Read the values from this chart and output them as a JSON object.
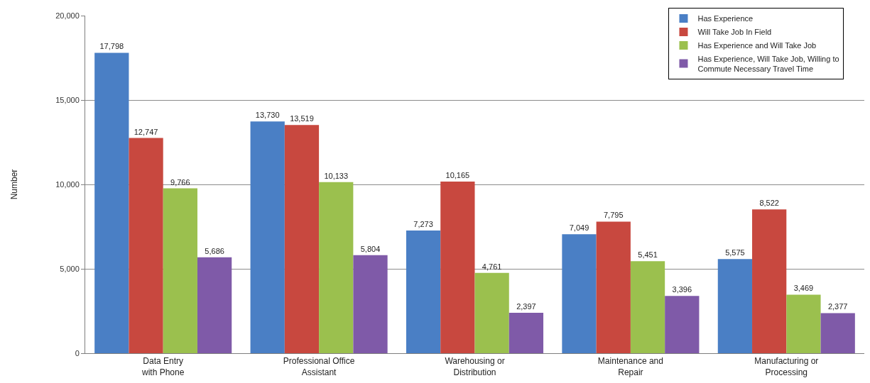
{
  "chart_data": {
    "type": "bar",
    "ylabel": "Number",
    "categories": [
      "Data Entry\nwith Phone",
      "Professional Office\nAssistant",
      "Warehousing or\nDistribution",
      "Maintenance and\nRepair",
      "Manufacturing or\nProcessing"
    ],
    "series": [
      {
        "name": "Has Experience",
        "color": "#4a7fc5",
        "values": [
          17798,
          13730,
          7273,
          7049,
          5575
        ],
        "value_labels": [
          "17,798",
          "13,730",
          "7,273",
          "7,049",
          "5,575"
        ]
      },
      {
        "name": "Will Take Job In Field",
        "color": "#c8483f",
        "values": [
          12747,
          13519,
          10165,
          7795,
          8522
        ],
        "value_labels": [
          "12,747",
          "13,519",
          "10,165",
          "7,795",
          "8,522"
        ]
      },
      {
        "name": "Has Experience and Will Take Job",
        "color": "#9bc04e",
        "values": [
          9766,
          10133,
          4761,
          5451,
          3469
        ],
        "value_labels": [
          "9,766",
          "10,133",
          "4,761",
          "5,451",
          "3,469"
        ]
      },
      {
        "name": "Has Experience, Will Take Job, Willing to\nCommute Necessary Travel Time",
        "color": "#7f5aa8",
        "values": [
          5686,
          5804,
          2397,
          3396,
          2377
        ],
        "value_labels": [
          "5,686",
          "5,804",
          "2,397",
          "3,396",
          "2,377"
        ]
      }
    ],
    "ylim": [
      0,
      20000
    ],
    "yticks": [
      0,
      {
        "value": 5000,
        "label": "5,000"
      },
      {
        "value": 10000,
        "label": "10,000"
      },
      {
        "value": 15000,
        "label": "15,000"
      },
      {
        "value": 20000,
        "label": "20,000"
      }
    ],
    "grid": "y",
    "legend": "top right"
  }
}
